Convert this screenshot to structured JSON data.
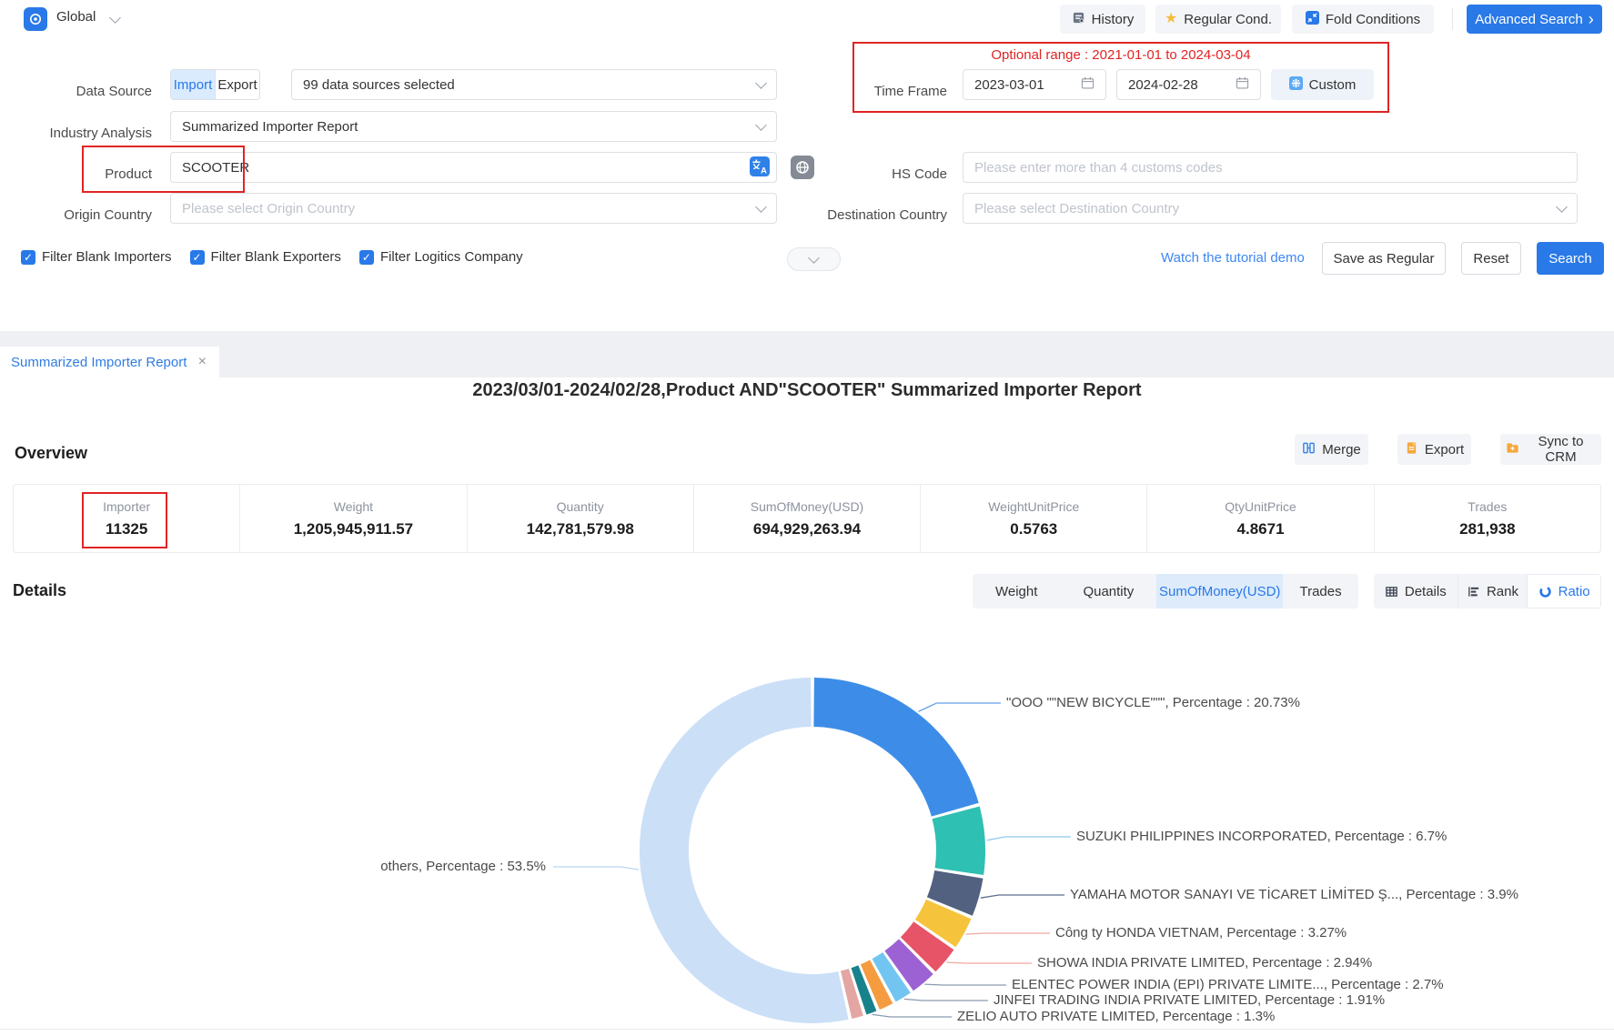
{
  "topbar": {
    "region_label": "Global",
    "history": "History",
    "regular_cond": "Regular Cond.",
    "fold_conditions": "Fold Conditions",
    "advanced_search": "Advanced Search"
  },
  "form": {
    "data_source_label": "Data Source",
    "import_tab": "Import",
    "export_tab": "Export",
    "data_sources_value": "99 data sources selected",
    "industry_label": "Industry Analysis",
    "industry_value": "Summarized Importer Report",
    "product_label": "Product",
    "product_value": "SCOOTER",
    "origin_label": "Origin Country",
    "origin_placeholder": "Please select Origin Country",
    "hs_code_label": "HS Code",
    "hs_code_placeholder": "Please enter more than 4 customs codes",
    "destination_label": "Destination Country",
    "destination_placeholder": "Please select Destination Country",
    "time_frame_label": "Time Frame",
    "optional_range": "Optional range : 2021-01-01 to 2024-03-04",
    "date_from": "2023-03-01",
    "date_to": "2024-02-28",
    "custom_button": "Custom",
    "checkboxes": [
      "Filter Blank Importers",
      "Filter Blank Exporters",
      "Filter Logitics Company"
    ],
    "tutorial_link": "Watch the tutorial demo",
    "save_as_regular": "Save as Regular",
    "reset": "Reset",
    "search": "Search"
  },
  "tab": {
    "label": "Summarized Importer Report"
  },
  "report": {
    "title": "2023/03/01-2024/02/28,Product AND\"SCOOTER\" Summarized Importer Report",
    "overview_heading": "Overview",
    "merge": "Merge",
    "export": "Export",
    "sync_to_crm": "Sync to CRM",
    "stats": [
      {
        "label": "Importer",
        "value": "11325"
      },
      {
        "label": "Weight",
        "value": "1,205,945,911.57"
      },
      {
        "label": "Quantity",
        "value": "142,781,579.98"
      },
      {
        "label": "SumOfMoney(USD)",
        "value": "694,929,263.94"
      },
      {
        "label": "WeightUnitPrice",
        "value": "0.5763"
      },
      {
        "label": "QtyUnitPrice",
        "value": "4.8671"
      },
      {
        "label": "Trades",
        "value": "281,938"
      }
    ],
    "details_heading": "Details",
    "metric_tabs": [
      "Weight",
      "Quantity",
      "SumOfMoney(USD)",
      "Trades"
    ],
    "metric_active": "SumOfMoney(USD)",
    "view_tabs": [
      "Details",
      "Rank",
      "Ratio"
    ],
    "view_active": "Ratio"
  },
  "colors": {
    "accent_blue": "#2979E8",
    "annotation_red": "#E02424",
    "link_blue": "#3D87F2"
  },
  "chart_data": {
    "type": "pie",
    "subtype": "donut",
    "label_suffix": "Percentage",
    "legend_position": "none",
    "segments": [
      {
        "name": "\"OOO \"\"NEW BICYCLE\"\"\"",
        "pct": 20.73,
        "color": "#3D8DE8",
        "leader": "#63A0E8",
        "labeled": true
      },
      {
        "name": "SUZUKI PHILIPPINES INCORPORATED",
        "pct": 6.7,
        "color": "#2EC0B2",
        "leader": "#8FC7EE",
        "labeled": true
      },
      {
        "name": "YAMAHA MOTOR SANAYI VE TİCARET LİMİTED Ş...",
        "pct": 3.9,
        "color": "#51617F",
        "leader": "#5D6E8C",
        "labeled": true
      },
      {
        "name": "Công ty HONDA VIETNAM",
        "pct": 3.27,
        "color": "#F6C43C",
        "leader": "#F0A89F",
        "labeled": true
      },
      {
        "name": "SHOWA INDIA PRIVATE LIMITED",
        "pct": 2.94,
        "color": "#E75467",
        "leader": "#F0A89F",
        "labeled": true
      },
      {
        "name": "ELENTEC POWER INDIA (EPI) PRIVATE LIMITE...",
        "pct": 2.7,
        "color": "#9C62D4",
        "leader": "#8A9AB0",
        "labeled": true
      },
      {
        "name": "JINFEI TRADING INDIA PRIVATE LIMITED",
        "pct": 1.91,
        "color": "#72C5F0",
        "leader": "#8A9AB0",
        "labeled": true
      },
      {
        "name": "",
        "pct": 1.65,
        "color": "#F59C41",
        "leader": "",
        "labeled": false
      },
      {
        "name": "ZELIO AUTO PRIVATE LIMITED",
        "pct": 1.3,
        "color": "#18828C",
        "leader": "#8A9AB0",
        "labeled": true
      },
      {
        "name": "",
        "pct": 1.4,
        "color": "#E3A6A2",
        "leader": "",
        "labeled": false
      },
      {
        "name": "others",
        "pct": 53.5,
        "color": "#CBDFF7",
        "leader": "#BBD6F2",
        "labeled": true
      }
    ]
  }
}
